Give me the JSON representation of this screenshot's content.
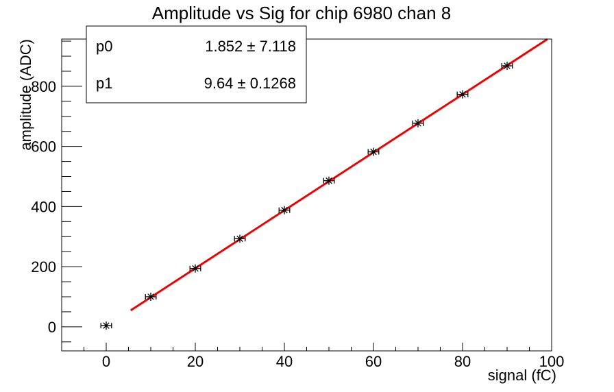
{
  "window": {
    "background": "#ffffff",
    "frame_color": "#000000"
  },
  "chart_data": {
    "type": "scatter",
    "title": "Amplitude vs Sig for chip 6980 chan 8",
    "xlabel": "signal (fC)",
    "ylabel": "amplitude (ADC)",
    "xlim": [
      -10,
      100
    ],
    "ylim": [
      -80,
      957
    ],
    "xticks": [
      0,
      20,
      40,
      60,
      80,
      100
    ],
    "xtick_minor_step": 5,
    "yticks": [
      0,
      200,
      400,
      600,
      800
    ],
    "ytick_minor_step": 50,
    "grid": false,
    "legend_position": "none",
    "points": [
      {
        "x": 0,
        "y": 4,
        "xerr": 1.2
      },
      {
        "x": 10,
        "y": 100,
        "xerr": 1.2
      },
      {
        "x": 20,
        "y": 194,
        "xerr": 1.2
      },
      {
        "x": 30,
        "y": 293,
        "xerr": 1.2
      },
      {
        "x": 40,
        "y": 388,
        "xerr": 1.2
      },
      {
        "x": 50,
        "y": 486,
        "xerr": 1.2
      },
      {
        "x": 60,
        "y": 582,
        "xerr": 1.2
      },
      {
        "x": 70,
        "y": 677,
        "xerr": 1.2
      },
      {
        "x": 80,
        "y": 773,
        "xerr": 1.2
      },
      {
        "x": 90,
        "y": 868,
        "xerr": 1.2
      }
    ],
    "fit": {
      "type": "linear",
      "p0": 1.852,
      "p1": 9.64,
      "draw_range": [
        5.5,
        99.05
      ],
      "color": "#f20000"
    },
    "marker": {
      "style": "asterisk",
      "color": "#000000"
    }
  },
  "stats_box": {
    "rows": [
      {
        "param": "p0",
        "value": "1.852 ± 7.118"
      },
      {
        "param": "p1",
        "value": "9.64 ± 0.1268"
      }
    ]
  }
}
